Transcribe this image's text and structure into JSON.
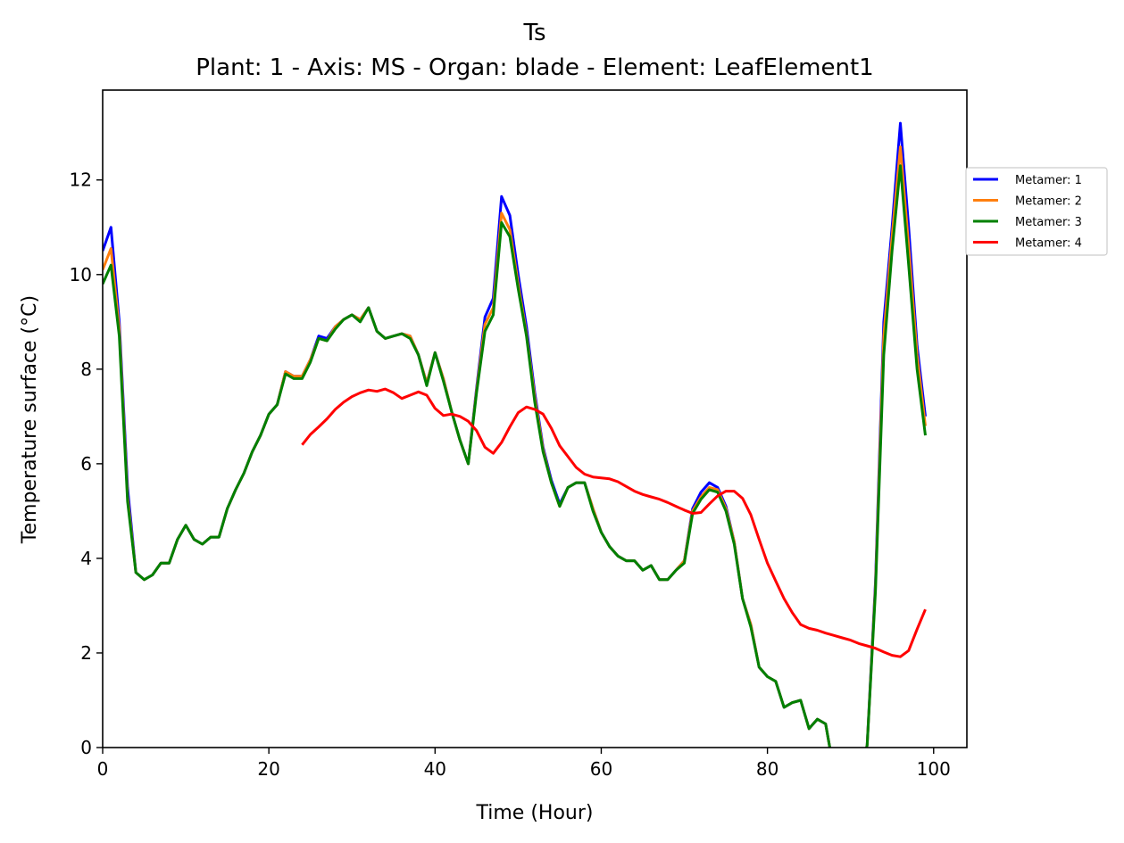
{
  "chart_data": {
    "type": "line",
    "title": "Ts",
    "subtitle": "Plant: 1 - Axis: MS - Organ: blade - Element: LeafElement1",
    "xlabel": "Time (Hour)",
    "ylabel": "Temperature surface (°C)",
    "xlim": [
      0,
      104
    ],
    "ylim": [
      0,
      13.9
    ],
    "xticks": [
      0,
      20,
      40,
      60,
      80,
      100
    ],
    "yticks": [
      0,
      2,
      4,
      6,
      8,
      10,
      12
    ],
    "grid": false,
    "legend_position": "right, outside plot area",
    "x": [
      0,
      1,
      2,
      3,
      4,
      5,
      6,
      7,
      8,
      9,
      10,
      11,
      12,
      13,
      14,
      15,
      16,
      17,
      18,
      19,
      20,
      21,
      22,
      23,
      24,
      25,
      26,
      27,
      28,
      29,
      30,
      31,
      32,
      33,
      34,
      35,
      36,
      37,
      38,
      39,
      40,
      41,
      42,
      43,
      44,
      45,
      46,
      47,
      48,
      49,
      50,
      51,
      52,
      53,
      54,
      55,
      56,
      57,
      58,
      59,
      60,
      61,
      62,
      63,
      64,
      65,
      66,
      67,
      68,
      69,
      70,
      71,
      72,
      73,
      74,
      75,
      76,
      77,
      78,
      79,
      80,
      81,
      82,
      83,
      84,
      85,
      86,
      87,
      88,
      89,
      90,
      91,
      92,
      93,
      94,
      95,
      96,
      97,
      98,
      99
    ],
    "series": [
      {
        "name": "Metamer: 1",
        "color": "#0000ff",
        "values": [
          10.5,
          11.0,
          9.0,
          5.5,
          3.7,
          3.55,
          3.65,
          3.9,
          3.9,
          4.4,
          4.7,
          4.4,
          4.3,
          4.45,
          4.45,
          5.05,
          5.45,
          5.8,
          6.25,
          6.6,
          7.05,
          7.25,
          7.95,
          7.85,
          7.85,
          8.2,
          8.7,
          8.65,
          8.9,
          9.05,
          9.15,
          9.05,
          9.3,
          8.8,
          8.65,
          8.7,
          8.75,
          8.7,
          8.3,
          7.7,
          8.35,
          7.8,
          7.1,
          6.5,
          6.0,
          7.6,
          9.1,
          9.5,
          11.65,
          11.25,
          10.0,
          8.9,
          7.5,
          6.35,
          5.65,
          5.15,
          5.5,
          5.6,
          5.6,
          5.05,
          4.55,
          4.25,
          4.05,
          3.95,
          3.95,
          3.75,
          3.85,
          3.55,
          3.55,
          3.75,
          3.95,
          5.05,
          5.4,
          5.6,
          5.5,
          5.1,
          4.35,
          3.15,
          2.6,
          1.7,
          1.5,
          1.4,
          0.85,
          0.95,
          1.0,
          0.4,
          0.6,
          0.5,
          -0.5,
          -1.0,
          -1.0,
          -0.7,
          0.05,
          3.5,
          9.0,
          11.0,
          13.2,
          11.0,
          8.5,
          7.0
        ]
      },
      {
        "name": "Metamer: 2",
        "color": "#ff7f0e",
        "values": [
          10.1,
          10.55,
          8.85,
          5.3,
          3.7,
          3.55,
          3.65,
          3.9,
          3.9,
          4.4,
          4.7,
          4.4,
          4.3,
          4.45,
          4.45,
          5.05,
          5.45,
          5.8,
          6.25,
          6.6,
          7.05,
          7.25,
          7.95,
          7.85,
          7.85,
          8.2,
          8.65,
          8.6,
          8.9,
          9.05,
          9.15,
          9.05,
          9.3,
          8.8,
          8.65,
          8.7,
          8.75,
          8.7,
          8.3,
          7.7,
          8.35,
          7.8,
          7.1,
          6.5,
          6.0,
          7.55,
          8.95,
          9.3,
          11.3,
          10.95,
          9.8,
          8.75,
          7.4,
          6.3,
          5.6,
          5.1,
          5.5,
          5.6,
          5.6,
          5.05,
          4.55,
          4.25,
          4.05,
          3.95,
          3.95,
          3.75,
          3.85,
          3.55,
          3.55,
          3.75,
          3.95,
          5.0,
          5.3,
          5.5,
          5.45,
          5.05,
          4.35,
          3.15,
          2.6,
          1.7,
          1.5,
          1.4,
          0.85,
          0.95,
          1.0,
          0.4,
          0.6,
          0.5,
          -0.5,
          -1.0,
          -1.0,
          -0.7,
          0.05,
          3.4,
          8.7,
          10.8,
          12.7,
          10.6,
          8.3,
          6.8
        ]
      },
      {
        "name": "Metamer: 3",
        "color": "#008000",
        "values": [
          9.8,
          10.2,
          8.7,
          5.2,
          3.7,
          3.55,
          3.65,
          3.9,
          3.9,
          4.4,
          4.7,
          4.4,
          4.3,
          4.45,
          4.45,
          5.05,
          5.45,
          5.8,
          6.25,
          6.6,
          7.05,
          7.25,
          7.9,
          7.8,
          7.8,
          8.15,
          8.65,
          8.6,
          8.85,
          9.05,
          9.15,
          9.0,
          9.3,
          8.8,
          8.65,
          8.7,
          8.75,
          8.65,
          8.3,
          7.65,
          8.35,
          7.75,
          7.1,
          6.5,
          6.0,
          7.5,
          8.8,
          9.15,
          11.1,
          10.8,
          9.7,
          8.7,
          7.3,
          6.25,
          5.6,
          5.1,
          5.5,
          5.6,
          5.6,
          5.0,
          4.55,
          4.25,
          4.05,
          3.95,
          3.95,
          3.75,
          3.85,
          3.55,
          3.55,
          3.75,
          3.9,
          4.95,
          5.25,
          5.45,
          5.4,
          5.0,
          4.3,
          3.15,
          2.55,
          1.7,
          1.5,
          1.4,
          0.85,
          0.95,
          1.0,
          0.4,
          0.6,
          0.5,
          -0.5,
          -1.0,
          -1.0,
          -0.7,
          0.05,
          3.3,
          8.3,
          10.5,
          12.3,
          10.2,
          8.0,
          6.6
        ]
      },
      {
        "name": "Metamer: 4",
        "color": "#ff0000",
        "values": [
          null,
          null,
          null,
          null,
          null,
          null,
          null,
          null,
          null,
          null,
          null,
          null,
          null,
          null,
          null,
          null,
          null,
          null,
          null,
          null,
          null,
          null,
          null,
          null,
          6.4,
          6.62,
          6.78,
          6.95,
          7.15,
          7.3,
          7.42,
          7.5,
          7.56,
          7.53,
          7.58,
          7.5,
          7.38,
          7.45,
          7.52,
          7.45,
          7.17,
          7.02,
          7.05,
          7.0,
          6.9,
          6.7,
          6.35,
          6.22,
          6.45,
          6.78,
          7.08,
          7.2,
          7.15,
          7.05,
          6.75,
          6.38,
          6.15,
          5.92,
          5.78,
          5.72,
          5.7,
          5.68,
          5.62,
          5.52,
          5.42,
          5.35,
          5.3,
          5.25,
          5.18,
          5.1,
          5.02,
          4.95,
          4.97,
          5.15,
          5.32,
          5.42,
          5.42,
          5.27,
          4.92,
          4.4,
          3.9,
          3.52,
          3.15,
          2.85,
          2.6,
          2.52,
          2.48,
          2.42,
          2.37,
          2.32,
          2.27,
          2.2,
          2.15,
          2.1,
          2.02,
          1.95,
          1.92,
          2.05,
          2.5,
          2.92
        ]
      }
    ]
  }
}
